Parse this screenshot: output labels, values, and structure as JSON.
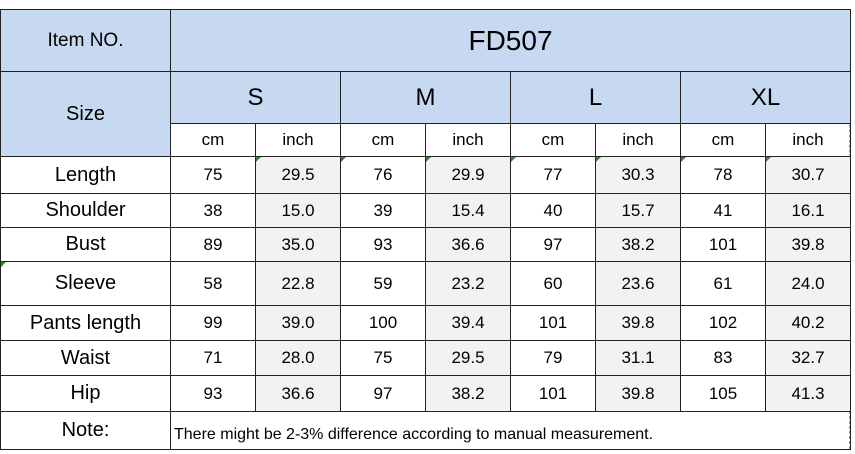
{
  "header": {
    "item_label": "Item NO.",
    "model": "FD507",
    "size_label": "Size"
  },
  "sizes": [
    "S",
    "M",
    "L",
    "XL"
  ],
  "units": {
    "cm": "cm",
    "inch": "inch"
  },
  "rows": [
    {
      "label": "Length",
      "values": [
        "75",
        "29.5",
        "76",
        "29.9",
        "77",
        "30.3",
        "78",
        "30.7"
      ]
    },
    {
      "label": "Shoulder",
      "values": [
        "38",
        "15.0",
        "39",
        "15.4",
        "40",
        "15.7",
        "41",
        "16.1"
      ]
    },
    {
      "label": "Bust",
      "values": [
        "89",
        "35.0",
        "93",
        "36.6",
        "97",
        "38.2",
        "101",
        "39.8"
      ]
    },
    {
      "label": "Sleeve",
      "values": [
        "58",
        "22.8",
        "59",
        "23.2",
        "60",
        "23.6",
        "61",
        "24.0"
      ]
    },
    {
      "label": "Pants length",
      "values": [
        "99",
        "39.0",
        "100",
        "39.4",
        "101",
        "39.8",
        "102",
        "40.2"
      ]
    },
    {
      "label": "Waist",
      "values": [
        "71",
        "28.0",
        "75",
        "29.5",
        "79",
        "31.1",
        "83",
        "32.7"
      ]
    },
    {
      "label": "Hip",
      "values": [
        "93",
        "36.6",
        "97",
        "38.2",
        "101",
        "39.8",
        "105",
        "41.3"
      ]
    }
  ],
  "note": {
    "label": "Note:",
    "text": "There might be 2-3% difference according to manual measurement."
  }
}
